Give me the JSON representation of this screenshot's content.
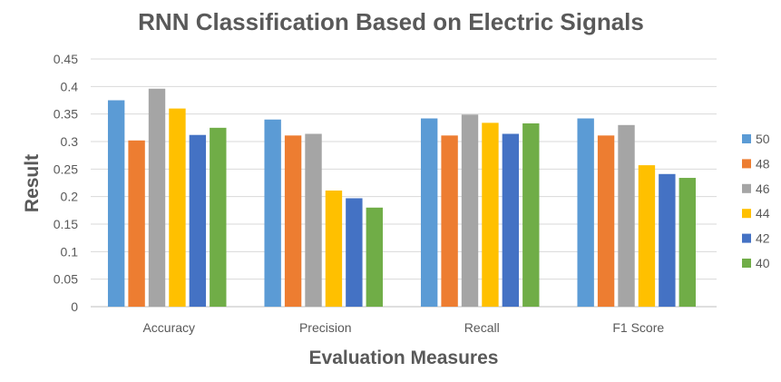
{
  "chart_data": {
    "type": "bar",
    "title": "RNN Classification Based on Electric Signals",
    "xlabel": "Evaluation Measures",
    "ylabel": "Result",
    "categories": [
      "Accuracy",
      "Precision",
      "Recall",
      "F1 Score"
    ],
    "ylim": [
      0,
      0.45
    ],
    "yticks": [
      "0",
      "0.05",
      "0.1",
      "0.15",
      "0.2",
      "0.25",
      "0.3",
      "0.35",
      "0.4",
      "0.45"
    ],
    "grid": true,
    "legend_position": "right",
    "series": [
      {
        "name": "50",
        "color": "#5b9bd5",
        "values": [
          0.375,
          0.34,
          0.342,
          0.342
        ]
      },
      {
        "name": "48",
        "color": "#ed7d31",
        "values": [
          0.302,
          0.311,
          0.311,
          0.311
        ]
      },
      {
        "name": "46",
        "color": "#a5a5a5",
        "values": [
          0.396,
          0.314,
          0.349,
          0.33
        ]
      },
      {
        "name": "44",
        "color": "#ffc000",
        "values": [
          0.36,
          0.211,
          0.334,
          0.257
        ]
      },
      {
        "name": "42",
        "color": "#4472c4",
        "values": [
          0.312,
          0.197,
          0.314,
          0.241
        ]
      },
      {
        "name": "40",
        "color": "#70ad47",
        "values": [
          0.325,
          0.18,
          0.333,
          0.234
        ]
      }
    ]
  }
}
